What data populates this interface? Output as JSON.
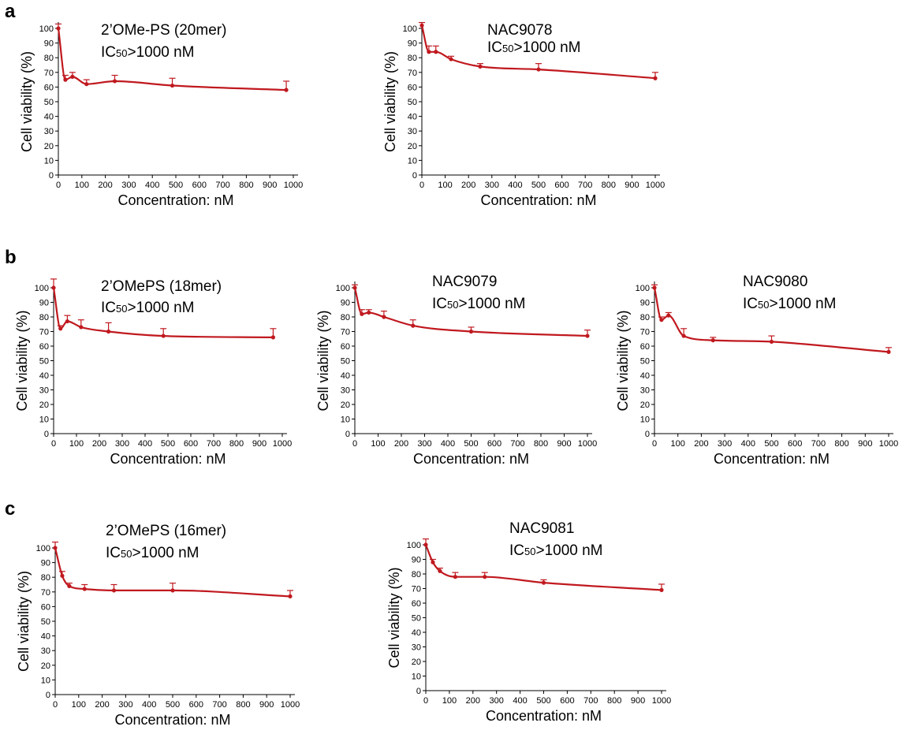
{
  "panels": [
    {
      "letter": "a"
    },
    {
      "letter": "b"
    },
    {
      "letter": "c"
    }
  ],
  "colors": {
    "series": "#c0191f",
    "error_bar": "#c0191f",
    "axis": "#000000"
  },
  "chart_data": [
    {
      "type": "line",
      "panel": "a",
      "title": "",
      "annotation": {
        "name": "2’OMe-PS (20mer)",
        "ic50": "IC50>1000 nM",
        "ic_prefix": "IC",
        "ic_sub": "50",
        "ic_rest": ">1000 nM"
      },
      "xlabel": "Concentration: nM",
      "ylabel": "Cell viability (%)",
      "xlim": [
        0,
        1000
      ],
      "ylim": [
        0,
        100
      ],
      "xticks": [
        0,
        100,
        200,
        300,
        400,
        500,
        600,
        700,
        800,
        900,
        1000
      ],
      "yticks": [
        0,
        10,
        20,
        30,
        40,
        50,
        60,
        70,
        80,
        90,
        100
      ],
      "grid": false,
      "points": [
        {
          "x": 0,
          "y": 100,
          "err": 3
        },
        {
          "x": 30,
          "y": 65,
          "err": 3
        },
        {
          "x": 60,
          "y": 67,
          "err": 3
        },
        {
          "x": 120,
          "y": 62,
          "err": 3
        },
        {
          "x": 240,
          "y": 64,
          "err": 4
        },
        {
          "x": 485,
          "y": 61,
          "err": 5
        },
        {
          "x": 970,
          "y": 58,
          "err": 6
        }
      ]
    },
    {
      "type": "line",
      "panel": "a",
      "title": "",
      "annotation": {
        "name": "NAC9078",
        "ic50": "IC50>1000 nM",
        "ic_prefix": "IC",
        "ic_sub": "50",
        "ic_rest": ">1000 nM"
      },
      "xlabel": "Concentration: nM",
      "ylabel": "Cell viability (%)",
      "xlim": [
        0,
        1000
      ],
      "ylim": [
        0,
        100
      ],
      "xticks": [
        0,
        100,
        200,
        300,
        400,
        500,
        600,
        700,
        800,
        900,
        1000
      ],
      "yticks": [
        0,
        10,
        20,
        30,
        40,
        50,
        60,
        70,
        80,
        90,
        100
      ],
      "grid": false,
      "points": [
        {
          "x": 0,
          "y": 102,
          "err": 2
        },
        {
          "x": 30,
          "y": 84,
          "err": 4
        },
        {
          "x": 60,
          "y": 84,
          "err": 4
        },
        {
          "x": 125,
          "y": 79,
          "err": 2
        },
        {
          "x": 250,
          "y": 74,
          "err": 2
        },
        {
          "x": 500,
          "y": 72,
          "err": 4
        },
        {
          "x": 1000,
          "y": 66,
          "err": 4
        }
      ]
    },
    {
      "type": "line",
      "panel": "b",
      "title": "",
      "annotation": {
        "name": "2’OMePS (18mer)",
        "ic50": "IC50>1000 nM",
        "ic_prefix": "IC",
        "ic_sub": "50",
        "ic_rest": ">1000 nM"
      },
      "xlabel": "Concentration: nM",
      "ylabel": "Cell viability (%)",
      "xlim": [
        0,
        1000
      ],
      "ylim": [
        0,
        100
      ],
      "xticks": [
        0,
        100,
        200,
        300,
        400,
        500,
        600,
        700,
        800,
        900,
        1000
      ],
      "yticks": [
        0,
        10,
        20,
        30,
        40,
        50,
        60,
        70,
        80,
        90,
        100
      ],
      "grid": false,
      "points": [
        {
          "x": 0,
          "y": 100,
          "err": 6
        },
        {
          "x": 30,
          "y": 72,
          "err": 2
        },
        {
          "x": 60,
          "y": 77,
          "err": 4
        },
        {
          "x": 120,
          "y": 73,
          "err": 5
        },
        {
          "x": 240,
          "y": 70,
          "err": 6
        },
        {
          "x": 480,
          "y": 67,
          "err": 5
        },
        {
          "x": 960,
          "y": 66,
          "err": 6
        }
      ]
    },
    {
      "type": "line",
      "panel": "b",
      "title": "",
      "annotation": {
        "name": "NAC9079",
        "ic50": "IC50>1000 nM",
        "ic_prefix": "IC",
        "ic_sub": "50",
        "ic_rest": ">1000 nM"
      },
      "xlabel": "Concentration: nM",
      "ylabel": "Cell viability (%)",
      "xlim": [
        0,
        1000
      ],
      "ylim": [
        0,
        100
      ],
      "xticks": [
        0,
        100,
        200,
        300,
        400,
        500,
        600,
        700,
        800,
        900,
        1000
      ],
      "yticks": [
        0,
        10,
        20,
        30,
        40,
        50,
        60,
        70,
        80,
        90,
        100
      ],
      "grid": false,
      "points": [
        {
          "x": 0,
          "y": 100,
          "err": 2
        },
        {
          "x": 30,
          "y": 82,
          "err": 3
        },
        {
          "x": 60,
          "y": 83,
          "err": 2
        },
        {
          "x": 125,
          "y": 80,
          "err": 4
        },
        {
          "x": 250,
          "y": 74,
          "err": 4
        },
        {
          "x": 500,
          "y": 70,
          "err": 3
        },
        {
          "x": 1000,
          "y": 67,
          "err": 4
        }
      ]
    },
    {
      "type": "line",
      "panel": "b",
      "title": "",
      "annotation": {
        "name": "NAC9080",
        "ic50": "IC50>1000 nM",
        "ic_prefix": "IC",
        "ic_sub": "50",
        "ic_rest": ">1000 nM"
      },
      "xlabel": "Concentration: nM",
      "ylabel": "Cell viability (%)",
      "xlim": [
        0,
        1000
      ],
      "ylim": [
        0,
        100
      ],
      "xticks": [
        0,
        100,
        200,
        300,
        400,
        500,
        600,
        700,
        800,
        900,
        1000
      ],
      "yticks": [
        0,
        10,
        20,
        30,
        40,
        50,
        60,
        70,
        80,
        90,
        100
      ],
      "grid": false,
      "points": [
        {
          "x": 0,
          "y": 100,
          "err": 2
        },
        {
          "x": 30,
          "y": 78,
          "err": 2
        },
        {
          "x": 60,
          "y": 81,
          "err": 2
        },
        {
          "x": 125,
          "y": 67,
          "err": 5
        },
        {
          "x": 250,
          "y": 64,
          "err": 2
        },
        {
          "x": 500,
          "y": 63,
          "err": 4
        },
        {
          "x": 1000,
          "y": 56,
          "err": 3
        }
      ]
    },
    {
      "type": "line",
      "panel": "c",
      "title": "",
      "annotation": {
        "name": "2’OMePS (16mer)",
        "ic50": "IC50>1000 nM",
        "ic_prefix": "IC",
        "ic_sub": "50",
        "ic_rest": ">1000 nM"
      },
      "xlabel": "Concentration: nM",
      "ylabel": "Cell viability (%)",
      "xlim": [
        0,
        1000
      ],
      "ylim": [
        0,
        100
      ],
      "xticks": [
        0,
        100,
        200,
        300,
        400,
        500,
        600,
        700,
        800,
        900,
        1000
      ],
      "yticks": [
        0,
        10,
        20,
        30,
        40,
        50,
        60,
        70,
        80,
        90,
        100
      ],
      "grid": false,
      "points": [
        {
          "x": 0,
          "y": 100,
          "err": 4
        },
        {
          "x": 30,
          "y": 81,
          "err": 3
        },
        {
          "x": 60,
          "y": 74,
          "err": 2
        },
        {
          "x": 125,
          "y": 72,
          "err": 3
        },
        {
          "x": 250,
          "y": 71,
          "err": 4
        },
        {
          "x": 500,
          "y": 71,
          "err": 5
        },
        {
          "x": 1000,
          "y": 67,
          "err": 4
        }
      ]
    },
    {
      "type": "line",
      "panel": "c",
      "title": "",
      "annotation": {
        "name": "NAC9081",
        "ic50": "IC50>1000 nM",
        "ic_prefix": "IC",
        "ic_sub": "50",
        "ic_rest": ">1000 nM"
      },
      "xlabel": "Concentration: nM",
      "ylabel": "Cell viability (%)",
      "xlim": [
        0,
        1000
      ],
      "ylim": [
        0,
        100
      ],
      "xticks": [
        0,
        100,
        200,
        300,
        400,
        500,
        600,
        700,
        800,
        900,
        1000
      ],
      "yticks": [
        0,
        10,
        20,
        30,
        40,
        50,
        60,
        70,
        80,
        90,
        100
      ],
      "grid": false,
      "points": [
        {
          "x": 0,
          "y": 100,
          "err": 4
        },
        {
          "x": 30,
          "y": 88,
          "err": 2
        },
        {
          "x": 60,
          "y": 82,
          "err": 2
        },
        {
          "x": 125,
          "y": 78,
          "err": 3
        },
        {
          "x": 250,
          "y": 78,
          "err": 3
        },
        {
          "x": 500,
          "y": 74,
          "err": 2
        },
        {
          "x": 1000,
          "y": 69,
          "err": 4
        }
      ]
    }
  ]
}
